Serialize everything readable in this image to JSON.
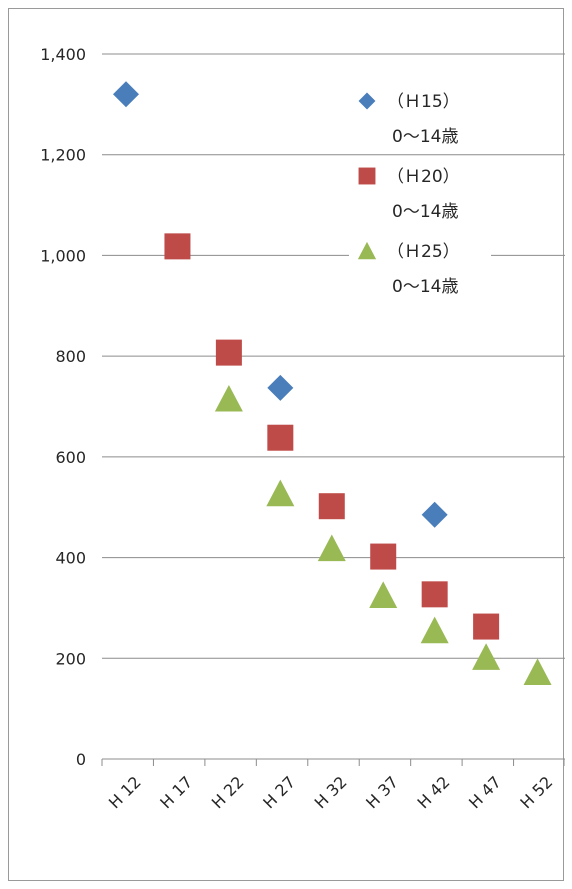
{
  "chart_data": {
    "type": "scatter",
    "categories": [
      "H 12",
      "H 17",
      "H 22",
      "H 27",
      "H 32",
      "H 37",
      "H 42",
      "H 47",
      "H 52"
    ],
    "yticks": [
      "0",
      "200",
      "400",
      "600",
      "800",
      "1,000",
      "1,200",
      "1,400"
    ],
    "ylim": [
      0,
      1400
    ],
    "grid": true,
    "legend_position": "top-right",
    "series": [
      {
        "name": "（Ｈ15）\n0～14歳",
        "name_line1": "（Ｈ15）",
        "name_line2": "0～14歳",
        "marker": "diamond",
        "color": "#4a7ebb",
        "points": [
          [
            "H 12",
            1320
          ],
          [
            "H 27",
            737
          ],
          [
            "H 42",
            485
          ]
        ]
      },
      {
        "name": "（Ｈ20）\n0～14歳",
        "name_line1": "（Ｈ20）",
        "name_line2": "0～14歳",
        "marker": "square",
        "color": "#be4b48",
        "points": [
          [
            "H 17",
            1018
          ],
          [
            "H 22",
            807
          ],
          [
            "H 27",
            638
          ],
          [
            "H 32",
            502
          ],
          [
            "H 37",
            402
          ],
          [
            "H 42",
            327
          ],
          [
            "H 47",
            263
          ]
        ]
      },
      {
        "name": "（Ｈ25）\n0～14歳",
        "name_line1": "（Ｈ25）",
        "name_line2": "0～14歳",
        "marker": "triangle",
        "color": "#98b954",
        "points": [
          [
            "H 22",
            715
          ],
          [
            "H 27",
            527
          ],
          [
            "H 32",
            418
          ],
          [
            "H 37",
            325
          ],
          [
            "H 42",
            255
          ],
          [
            "H 47",
            202
          ],
          [
            "H 52",
            172
          ]
        ]
      }
    ]
  }
}
